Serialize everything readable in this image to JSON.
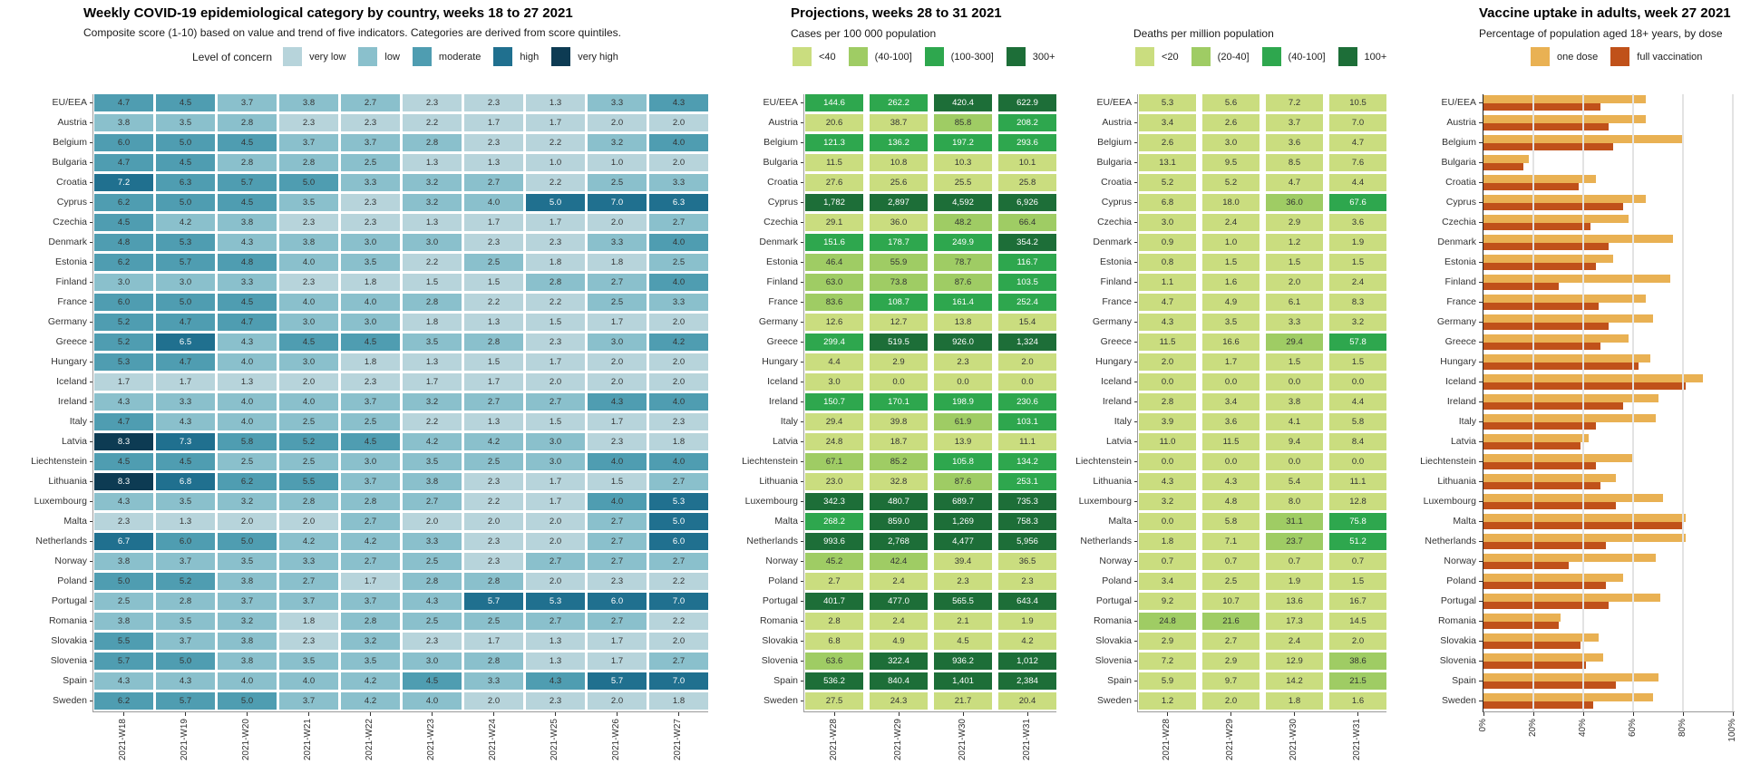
{
  "countries": [
    "EU/EEA",
    "Austria",
    "Belgium",
    "Bulgaria",
    "Croatia",
    "Cyprus",
    "Czechia",
    "Denmark",
    "Estonia",
    "Finland",
    "France",
    "Germany",
    "Greece",
    "Hungary",
    "Iceland",
    "Ireland",
    "Italy",
    "Latvia",
    "Liechtenstein",
    "Lithuania",
    "Luxembourg",
    "Malta",
    "Netherlands",
    "Norway",
    "Poland",
    "Portugal",
    "Romania",
    "Slovakia",
    "Slovenia",
    "Spain",
    "Sweden"
  ],
  "chart_data": [
    {
      "type": "heatmap",
      "title": "Weekly COVID-19 epidemiological category by country, weeks 18 to 27 2021",
      "subtitle": "Composite score (1-10) based on value and trend of five indicators. Categories are derived from score quintiles.",
      "legend_title": "Level of concern",
      "legend": [
        {
          "label": "very low",
          "color": "#b7d4db"
        },
        {
          "label": "low",
          "color": "#8ac0cc"
        },
        {
          "label": "moderate",
          "color": "#4f9db1"
        },
        {
          "label": "high",
          "color": "#20708f"
        },
        {
          "label": "very high",
          "color": "#0d3b53"
        }
      ],
      "x": [
        "2021-W18",
        "2021-W19",
        "2021-W20",
        "2021-W21",
        "2021-W22",
        "2021-W23",
        "2021-W24",
        "2021-W25",
        "2021-W26",
        "2021-W27"
      ],
      "values": [
        [
          "4.7",
          "4.5",
          "3.7",
          "3.8",
          "2.7",
          "2.3",
          "2.3",
          "1.3",
          "3.3",
          "4.3"
        ],
        [
          "3.8",
          "3.5",
          "2.8",
          "2.3",
          "2.3",
          "2.2",
          "1.7",
          "1.7",
          "2.0",
          "2.0"
        ],
        [
          "6.0",
          "5.0",
          "4.5",
          "3.7",
          "3.7",
          "2.8",
          "2.3",
          "2.2",
          "3.2",
          "4.0"
        ],
        [
          "4.7",
          "4.5",
          "2.8",
          "2.8",
          "2.5",
          "1.3",
          "1.3",
          "1.0",
          "1.0",
          "2.0"
        ],
        [
          "7.2",
          "6.3",
          "5.7",
          "5.0",
          "3.3",
          "3.2",
          "2.7",
          "2.2",
          "2.5",
          "3.3"
        ],
        [
          "6.2",
          "5.0",
          "4.5",
          "3.5",
          "2.3",
          "3.2",
          "4.0",
          "5.0",
          "7.0",
          "6.3"
        ],
        [
          "4.5",
          "4.2",
          "3.8",
          "2.3",
          "2.3",
          "1.3",
          "1.7",
          "1.7",
          "2.0",
          "2.7"
        ],
        [
          "4.8",
          "5.3",
          "4.3",
          "3.8",
          "3.0",
          "3.0",
          "2.3",
          "2.3",
          "3.3",
          "4.0"
        ],
        [
          "6.2",
          "5.7",
          "4.8",
          "4.0",
          "3.5",
          "2.2",
          "2.5",
          "1.8",
          "1.8",
          "2.5"
        ],
        [
          "3.0",
          "3.0",
          "3.3",
          "2.3",
          "1.8",
          "1.5",
          "1.5",
          "2.8",
          "2.7",
          "4.0"
        ],
        [
          "6.0",
          "5.0",
          "4.5",
          "4.0",
          "4.0",
          "2.8",
          "2.2",
          "2.2",
          "2.5",
          "3.3"
        ],
        [
          "5.2",
          "4.7",
          "4.7",
          "3.0",
          "3.0",
          "1.8",
          "1.3",
          "1.5",
          "1.7",
          "2.0"
        ],
        [
          "5.2",
          "6.5",
          "4.3",
          "4.5",
          "4.5",
          "3.5",
          "2.8",
          "2.3",
          "3.0",
          "4.2"
        ],
        [
          "5.3",
          "4.7",
          "4.0",
          "3.0",
          "1.8",
          "1.3",
          "1.5",
          "1.7",
          "2.0",
          "2.0"
        ],
        [
          "1.7",
          "1.7",
          "1.3",
          "2.0",
          "2.3",
          "1.7",
          "1.7",
          "2.0",
          "2.0",
          "2.0"
        ],
        [
          "4.3",
          "3.3",
          "4.0",
          "4.0",
          "3.7",
          "3.2",
          "2.7",
          "2.7",
          "4.3",
          "4.0"
        ],
        [
          "4.7",
          "4.3",
          "4.0",
          "2.5",
          "2.5",
          "2.2",
          "1.3",
          "1.5",
          "1.7",
          "2.3"
        ],
        [
          "8.3",
          "7.3",
          "5.8",
          "5.2",
          "4.5",
          "4.2",
          "4.2",
          "3.0",
          "2.3",
          "1.8"
        ],
        [
          "4.5",
          "4.5",
          "2.5",
          "2.5",
          "3.0",
          "3.5",
          "2.5",
          "3.0",
          "4.0",
          "4.0"
        ],
        [
          "8.3",
          "6.8",
          "6.2",
          "5.5",
          "3.7",
          "3.8",
          "2.3",
          "1.7",
          "1.5",
          "2.7"
        ],
        [
          "4.3",
          "3.5",
          "3.2",
          "2.8",
          "2.8",
          "2.7",
          "2.2",
          "1.7",
          "4.0",
          "5.3"
        ],
        [
          "2.3",
          "1.3",
          "2.0",
          "2.0",
          "2.7",
          "2.0",
          "2.0",
          "2.0",
          "2.7",
          "5.0"
        ],
        [
          "6.7",
          "6.0",
          "5.0",
          "4.2",
          "4.2",
          "3.3",
          "2.3",
          "2.0",
          "2.7",
          "6.0"
        ],
        [
          "3.8",
          "3.7",
          "3.5",
          "3.3",
          "2.7",
          "2.5",
          "2.3",
          "2.7",
          "2.7",
          "2.7"
        ],
        [
          "5.0",
          "5.2",
          "3.8",
          "2.7",
          "1.7",
          "2.8",
          "2.8",
          "2.0",
          "2.3",
          "2.2"
        ],
        [
          "2.5",
          "2.8",
          "3.7",
          "3.7",
          "3.7",
          "4.3",
          "5.7",
          "5.3",
          "6.0",
          "7.0"
        ],
        [
          "3.8",
          "3.5",
          "3.2",
          "1.8",
          "2.8",
          "2.5",
          "2.5",
          "2.7",
          "2.7",
          "2.2"
        ],
        [
          "5.5",
          "3.7",
          "3.8",
          "2.3",
          "3.2",
          "2.3",
          "1.7",
          "1.3",
          "1.7",
          "2.0"
        ],
        [
          "5.7",
          "5.0",
          "3.8",
          "3.5",
          "3.5",
          "3.0",
          "2.8",
          "1.3",
          "1.7",
          "2.7"
        ],
        [
          "4.3",
          "4.3",
          "4.0",
          "4.0",
          "4.2",
          "4.5",
          "3.3",
          "4.3",
          "5.7",
          "7.0"
        ],
        [
          "6.2",
          "5.7",
          "5.0",
          "3.7",
          "4.2",
          "4.0",
          "2.0",
          "2.3",
          "2.0",
          "1.8"
        ]
      ],
      "category_codes": [
        "2211100012",
        "1110000000",
        "2221110012",
        "2211100000",
        "3222111011",
        "2221011333",
        "2110000001",
        "2211110012",
        "2221101001",
        "1110000112",
        "2221110011",
        "2221100000",
        "2312211012",
        "2211000000",
        "0000000000",
        "1111111122",
        "2111100000",
        "4322211100",
        "2211111122",
        "4322110001",
        "1111110023",
        "0000100013",
        "3221110013",
        "1111110111",
        "2211011000",
        "1111113333",
        "1110111110",
        "2110100000",
        "2211111001",
        "1111121233",
        "2221110000"
      ]
    },
    {
      "type": "heatmap",
      "title": "Projections, weeks 28 to 31 2021",
      "subtitle": "Cases per 100 000 population",
      "legend": [
        {
          "label": "<40",
          "color": "#cadd7f"
        },
        {
          "label": "(40-100]",
          "color": "#9fcc64"
        },
        {
          "label": "(100-300]",
          "color": "#2ea74e"
        },
        {
          "label": "300+",
          "color": "#1d6e38"
        }
      ],
      "thresholds": [
        40,
        100,
        300
      ],
      "x": [
        "2021-W28",
        "2021-W29",
        "2021-W30",
        "2021-W31"
      ],
      "values": [
        [
          "144.6",
          "262.2",
          "420.4",
          "622.9"
        ],
        [
          "20.6",
          "38.7",
          "85.8",
          "208.2"
        ],
        [
          "121.3",
          "136.2",
          "197.2",
          "293.6"
        ],
        [
          "11.5",
          "10.8",
          "10.3",
          "10.1"
        ],
        [
          "27.6",
          "25.6",
          "25.5",
          "25.8"
        ],
        [
          "1,782",
          "2,897",
          "4,592",
          "6,926"
        ],
        [
          "29.1",
          "36.0",
          "48.2",
          "66.4"
        ],
        [
          "151.6",
          "178.7",
          "249.9",
          "354.2"
        ],
        [
          "46.4",
          "55.9",
          "78.7",
          "116.7"
        ],
        [
          "63.0",
          "73.8",
          "87.6",
          "103.5"
        ],
        [
          "83.6",
          "108.7",
          "161.4",
          "252.4"
        ],
        [
          "12.6",
          "12.7",
          "13.8",
          "15.4"
        ],
        [
          "299.4",
          "519.5",
          "926.0",
          "1,324"
        ],
        [
          "4.4",
          "2.9",
          "2.3",
          "2.0"
        ],
        [
          "3.0",
          "0.0",
          "0.0",
          "0.0"
        ],
        [
          "150.7",
          "170.1",
          "198.9",
          "230.6"
        ],
        [
          "29.4",
          "39.8",
          "61.9",
          "103.1"
        ],
        [
          "24.8",
          "18.7",
          "13.9",
          "11.1"
        ],
        [
          "67.1",
          "85.2",
          "105.8",
          "134.2"
        ],
        [
          "23.0",
          "32.8",
          "87.6",
          "253.1"
        ],
        [
          "342.3",
          "480.7",
          "689.7",
          "735.3"
        ],
        [
          "268.2",
          "859.0",
          "1,269",
          "758.3"
        ],
        [
          "993.6",
          "2,768",
          "4,477",
          "5,956"
        ],
        [
          "45.2",
          "42.4",
          "39.4",
          "36.5"
        ],
        [
          "2.7",
          "2.4",
          "2.3",
          "2.3"
        ],
        [
          "401.7",
          "477.0",
          "565.5",
          "643.4"
        ],
        [
          "2.8",
          "2.4",
          "2.1",
          "1.9"
        ],
        [
          "6.8",
          "4.9",
          "4.5",
          "4.2"
        ],
        [
          "63.6",
          "322.4",
          "936.2",
          "1,012"
        ],
        [
          "536.2",
          "840.4",
          "1,401",
          "2,384"
        ],
        [
          "27.5",
          "24.3",
          "21.7",
          "20.4"
        ]
      ]
    },
    {
      "type": "heatmap",
      "title": "Deaths per million population",
      "legend": [
        {
          "label": "<20",
          "color": "#cadd7f"
        },
        {
          "label": "(20-40]",
          "color": "#9fcc64"
        },
        {
          "label": "(40-100]",
          "color": "#2ea74e"
        },
        {
          "label": "100+",
          "color": "#1d6e38"
        }
      ],
      "thresholds": [
        20,
        40,
        100
      ],
      "x": [
        "2021-W28",
        "2021-W29",
        "2021-W30",
        "2021-W31"
      ],
      "values": [
        [
          "5.3",
          "5.6",
          "7.2",
          "10.5"
        ],
        [
          "3.4",
          "2.6",
          "3.7",
          "7.0"
        ],
        [
          "2.6",
          "3.0",
          "3.6",
          "4.7"
        ],
        [
          "13.1",
          "9.5",
          "8.5",
          "7.6"
        ],
        [
          "5.2",
          "5.2",
          "4.7",
          "4.4"
        ],
        [
          "6.8",
          "18.0",
          "36.0",
          "67.6"
        ],
        [
          "3.0",
          "2.4",
          "2.9",
          "3.6"
        ],
        [
          "0.9",
          "1.0",
          "1.2",
          "1.9"
        ],
        [
          "0.8",
          "1.5",
          "1.5",
          "1.5"
        ],
        [
          "1.1",
          "1.6",
          "2.0",
          "2.4"
        ],
        [
          "4.7",
          "4.9",
          "6.1",
          "8.3"
        ],
        [
          "4.3",
          "3.5",
          "3.3",
          "3.2"
        ],
        [
          "11.5",
          "16.6",
          "29.4",
          "57.8"
        ],
        [
          "2.0",
          "1.7",
          "1.5",
          "1.5"
        ],
        [
          "0.0",
          "0.0",
          "0.0",
          "0.0"
        ],
        [
          "2.8",
          "3.4",
          "3.8",
          "4.4"
        ],
        [
          "3.9",
          "3.6",
          "4.1",
          "5.8"
        ],
        [
          "11.0",
          "11.5",
          "9.4",
          "8.4"
        ],
        [
          "0.0",
          "0.0",
          "0.0",
          "0.0"
        ],
        [
          "4.3",
          "4.3",
          "5.4",
          "11.1"
        ],
        [
          "3.2",
          "4.8",
          "8.0",
          "12.8"
        ],
        [
          "0.0",
          "5.8",
          "31.1",
          "75.8"
        ],
        [
          "1.8",
          "7.1",
          "23.7",
          "51.2"
        ],
        [
          "0.7",
          "0.7",
          "0.7",
          "0.7"
        ],
        [
          "3.4",
          "2.5",
          "1.9",
          "1.5"
        ],
        [
          "9.2",
          "10.7",
          "13.6",
          "16.7"
        ],
        [
          "24.8",
          "21.6",
          "17.3",
          "14.5"
        ],
        [
          "2.9",
          "2.7",
          "2.4",
          "2.0"
        ],
        [
          "7.2",
          "2.9",
          "12.9",
          "38.6"
        ],
        [
          "5.9",
          "9.7",
          "14.2",
          "21.5"
        ],
        [
          "1.2",
          "2.0",
          "1.8",
          "1.6"
        ]
      ]
    },
    {
      "type": "bar",
      "title": "Vaccine uptake in adults, week 27 2021",
      "subtitle": "Percentage of population aged 18+ years, by dose",
      "legend": [
        {
          "label": "one dose",
          "color": "#e9b153"
        },
        {
          "label": "full vaccination",
          "color": "#c0511a"
        }
      ],
      "x_ticks": [
        "0%",
        "20%",
        "40%",
        "60%",
        "80%",
        "100%"
      ],
      "xlim": [
        0,
        100
      ],
      "series": [
        {
          "name": "one dose",
          "values": [
            65,
            65,
            80,
            18,
            45,
            65,
            58,
            76,
            52,
            75,
            65,
            68,
            58,
            67,
            88,
            70,
            69,
            42,
            60,
            53,
            72,
            81,
            81,
            69,
            56,
            71,
            31,
            46,
            48,
            70,
            68
          ]
        },
        {
          "name": "full vaccination",
          "values": [
            47,
            50,
            52,
            16,
            38,
            56,
            43,
            50,
            45,
            30,
            46,
            50,
            47,
            62,
            81,
            56,
            45,
            39,
            45,
            47,
            53,
            80,
            49,
            34,
            49,
            50,
            30,
            39,
            41,
            53,
            44
          ]
        }
      ]
    }
  ]
}
